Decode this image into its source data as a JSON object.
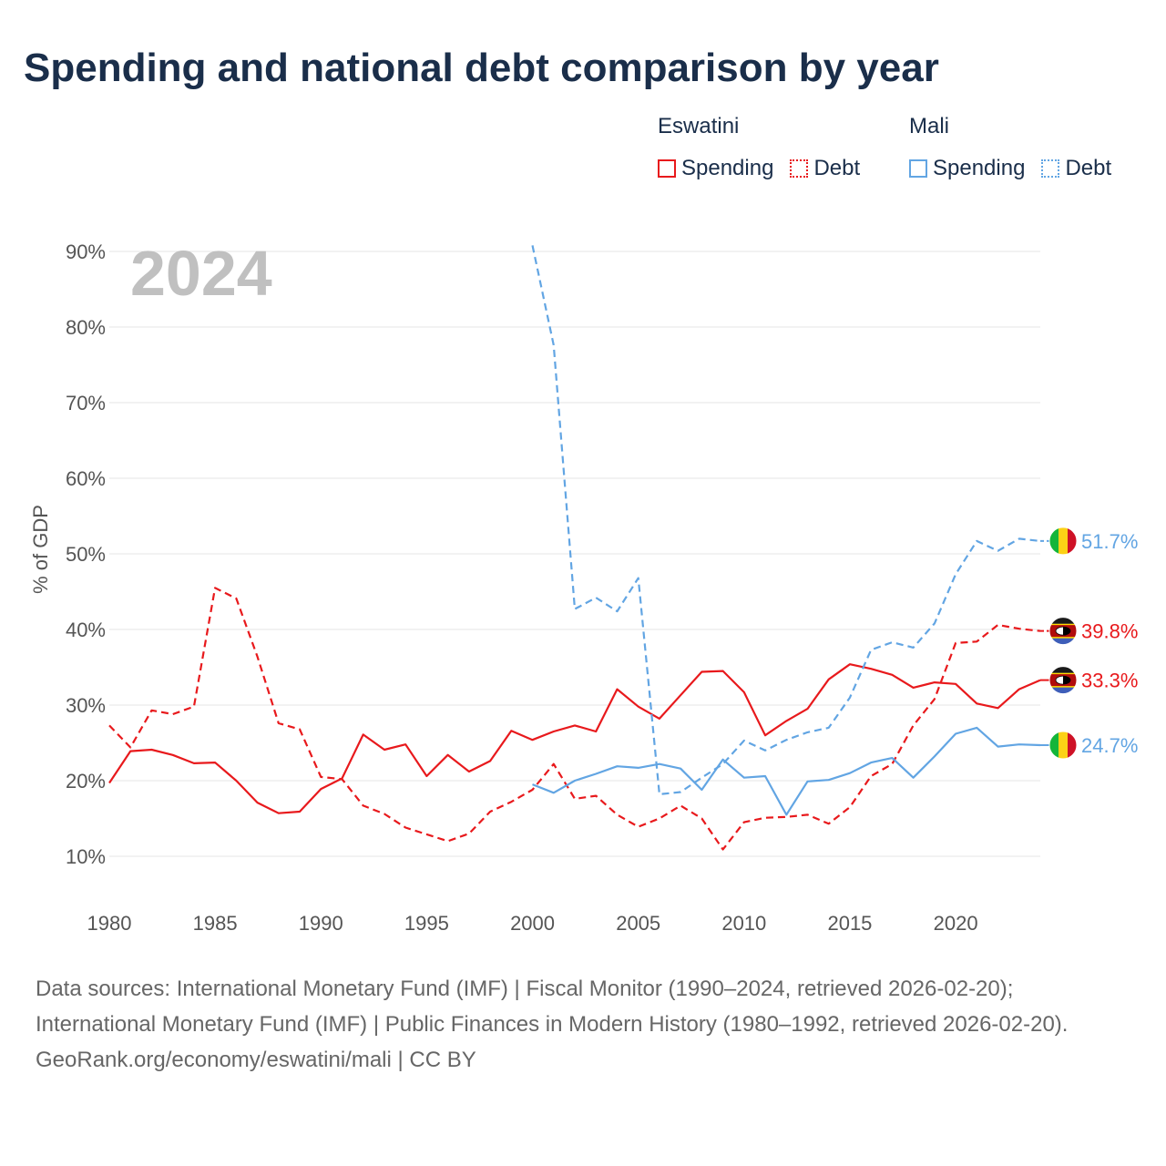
{
  "title": "Spending and national debt comparison by year",
  "legend": {
    "groups": [
      {
        "name": "Eswatini",
        "items": [
          {
            "label": "Spending",
            "color": "#e8191c",
            "style": "solid"
          },
          {
            "label": "Debt",
            "color": "#e8191c",
            "style": "dotted"
          }
        ]
      },
      {
        "name": "Mali",
        "items": [
          {
            "label": "Spending",
            "color": "#62a5e3",
            "style": "solid"
          },
          {
            "label": "Debt",
            "color": "#62a5e3",
            "style": "dotted"
          }
        ]
      }
    ]
  },
  "chart_data": {
    "type": "line",
    "title": "Spending and national debt comparison by year",
    "year_label": "2024",
    "xlabel": "",
    "ylabel": "% of GDP",
    "xlim": [
      1980,
      2024
    ],
    "ylim": [
      5,
      90
    ],
    "x_ticks": [
      "1980",
      "1985",
      "1990",
      "1995",
      "2000",
      "2005",
      "2010",
      "2015",
      "2020"
    ],
    "y_ticks": [
      "10%",
      "20%",
      "30%",
      "40%",
      "50%",
      "60%",
      "70%",
      "80%",
      "90%"
    ],
    "grid": true,
    "series": [
      {
        "name": "Eswatini Spending",
        "country": "Eswatini",
        "color": "#e8191c",
        "dash": false,
        "start": 1980,
        "values": [
          19.7,
          23.9,
          24.1,
          23.4,
          22.3,
          22.4,
          20.0,
          17.1,
          15.7,
          15.9,
          18.9,
          20.3,
          26.1,
          24.1,
          24.8,
          20.6,
          23.4,
          21.2,
          22.6,
          26.6,
          25.4,
          26.5,
          27.3,
          26.5,
          32.1,
          29.8,
          28.2,
          31.3,
          34.4,
          34.5,
          31.7,
          26.0,
          27.9,
          29.5,
          33.4,
          35.4,
          34.8,
          34.0,
          32.3,
          33.0,
          32.8,
          30.2,
          29.6,
          32.1,
          33.3
        ],
        "end_label": "33.3%"
      },
      {
        "name": "Eswatini Debt",
        "country": "Eswatini",
        "color": "#e8191c",
        "dash": true,
        "start": 1980,
        "values": [
          27.3,
          24.4,
          29.3,
          28.8,
          29.8,
          45.5,
          44.1,
          36.4,
          27.6,
          26.8,
          20.5,
          20.2,
          16.7,
          15.6,
          13.8,
          12.9,
          12.0,
          13.0,
          15.9,
          17.2,
          18.8,
          22.2,
          17.6,
          18.0,
          15.5,
          13.9,
          15.0,
          16.7,
          15.0,
          10.9,
          14.5,
          15.1,
          15.2,
          15.5,
          14.3,
          16.5,
          20.6,
          22.2,
          27.3,
          30.8,
          38.2,
          38.4,
          40.6,
          40.1,
          39.8
        ],
        "end_label": "39.8%"
      },
      {
        "name": "Mali Spending",
        "country": "Mali",
        "color": "#62a5e3",
        "dash": false,
        "start": 2000,
        "values": [
          19.5,
          18.4,
          20.0,
          20.9,
          21.9,
          21.7,
          22.2,
          21.6,
          18.8,
          22.8,
          20.4,
          20.6,
          15.5,
          19.9,
          20.1,
          21.0,
          22.4,
          23.0,
          20.4,
          23.2,
          26.2,
          27.0,
          24.5,
          24.8,
          24.7
        ],
        "end_label": "24.7%"
      },
      {
        "name": "Mali Debt",
        "country": "Mali",
        "color": "#62a5e3",
        "dash": true,
        "start": 2000,
        "values": [
          90.8,
          77.6,
          42.7,
          44.2,
          42.4,
          46.8,
          18.2,
          18.5,
          20.4,
          22.2,
          25.3,
          24.0,
          25.4,
          26.4,
          27.0,
          31.0,
          37.3,
          38.3,
          37.6,
          40.8,
          47.3,
          51.7,
          50.4,
          52.0,
          51.7
        ],
        "end_label": "51.7%"
      }
    ]
  },
  "footer": {
    "sources": "Data sources: International Monetary Fund (IMF) | Fiscal Monitor (1990–2024, retrieved 2026-02-20); International Monetary Fund (IMF) | Public Finances in Modern History (1980–1992, retrieved 2026-02-20).",
    "credit": "GeoRank.org/economy/eswatini/mali | CC BY"
  }
}
